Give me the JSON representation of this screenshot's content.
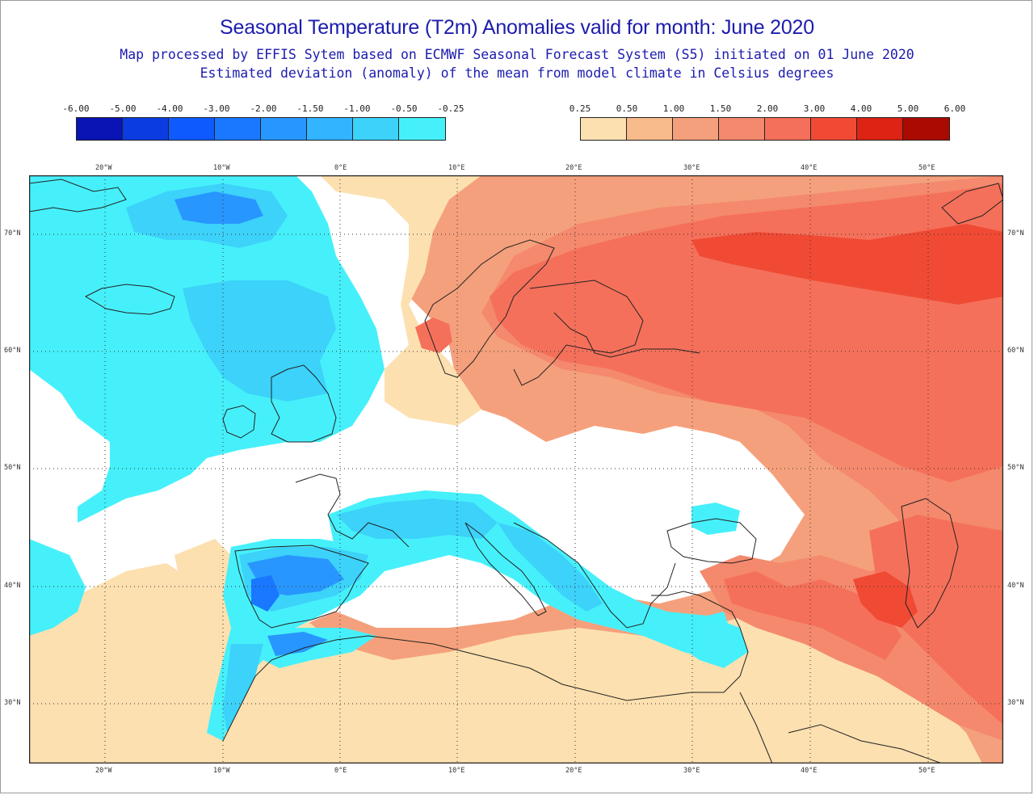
{
  "title": "Seasonal Temperature (T2m) Anomalies valid for month: June 2020",
  "subtitle1": "Map processed by EFFIS Sytem based on ECMWF Seasonal Forecast System (S5) initiated on 01 June 2020",
  "subtitle2": "Estimated deviation (anomaly) of the mean from model climate in Celsius degrees",
  "legend_negative": {
    "labels": [
      "-6.00",
      "-5.00",
      "-4.00",
      "-3.00",
      "-2.00",
      "-1.50",
      "-1.00",
      "-0.50",
      "-0.25"
    ],
    "colors": [
      "#0a14b4",
      "#0a3ce1",
      "#0f5aff",
      "#1978ff",
      "#2896ff",
      "#32b4ff",
      "#3cd2fa",
      "#46f0fa"
    ]
  },
  "legend_positive": {
    "labels": [
      "0.25",
      "0.50",
      "1.00",
      "1.50",
      "2.00",
      "3.00",
      "4.00",
      "5.00",
      "6.00"
    ],
    "colors": [
      "#fce0b0",
      "#f8bb8b",
      "#f5a07c",
      "#f4896d",
      "#f5705a",
      "#f04a35",
      "#dc2314",
      "#aa0a00"
    ]
  },
  "axes": {
    "lon_labels": [
      "20°W",
      "10°W",
      "0°E",
      "10°E",
      "20°E",
      "30°E",
      "40°E",
      "50°E"
    ],
    "lat_labels": [
      "70°N",
      "60°N",
      "50°N",
      "40°N",
      "30°N"
    ]
  }
}
